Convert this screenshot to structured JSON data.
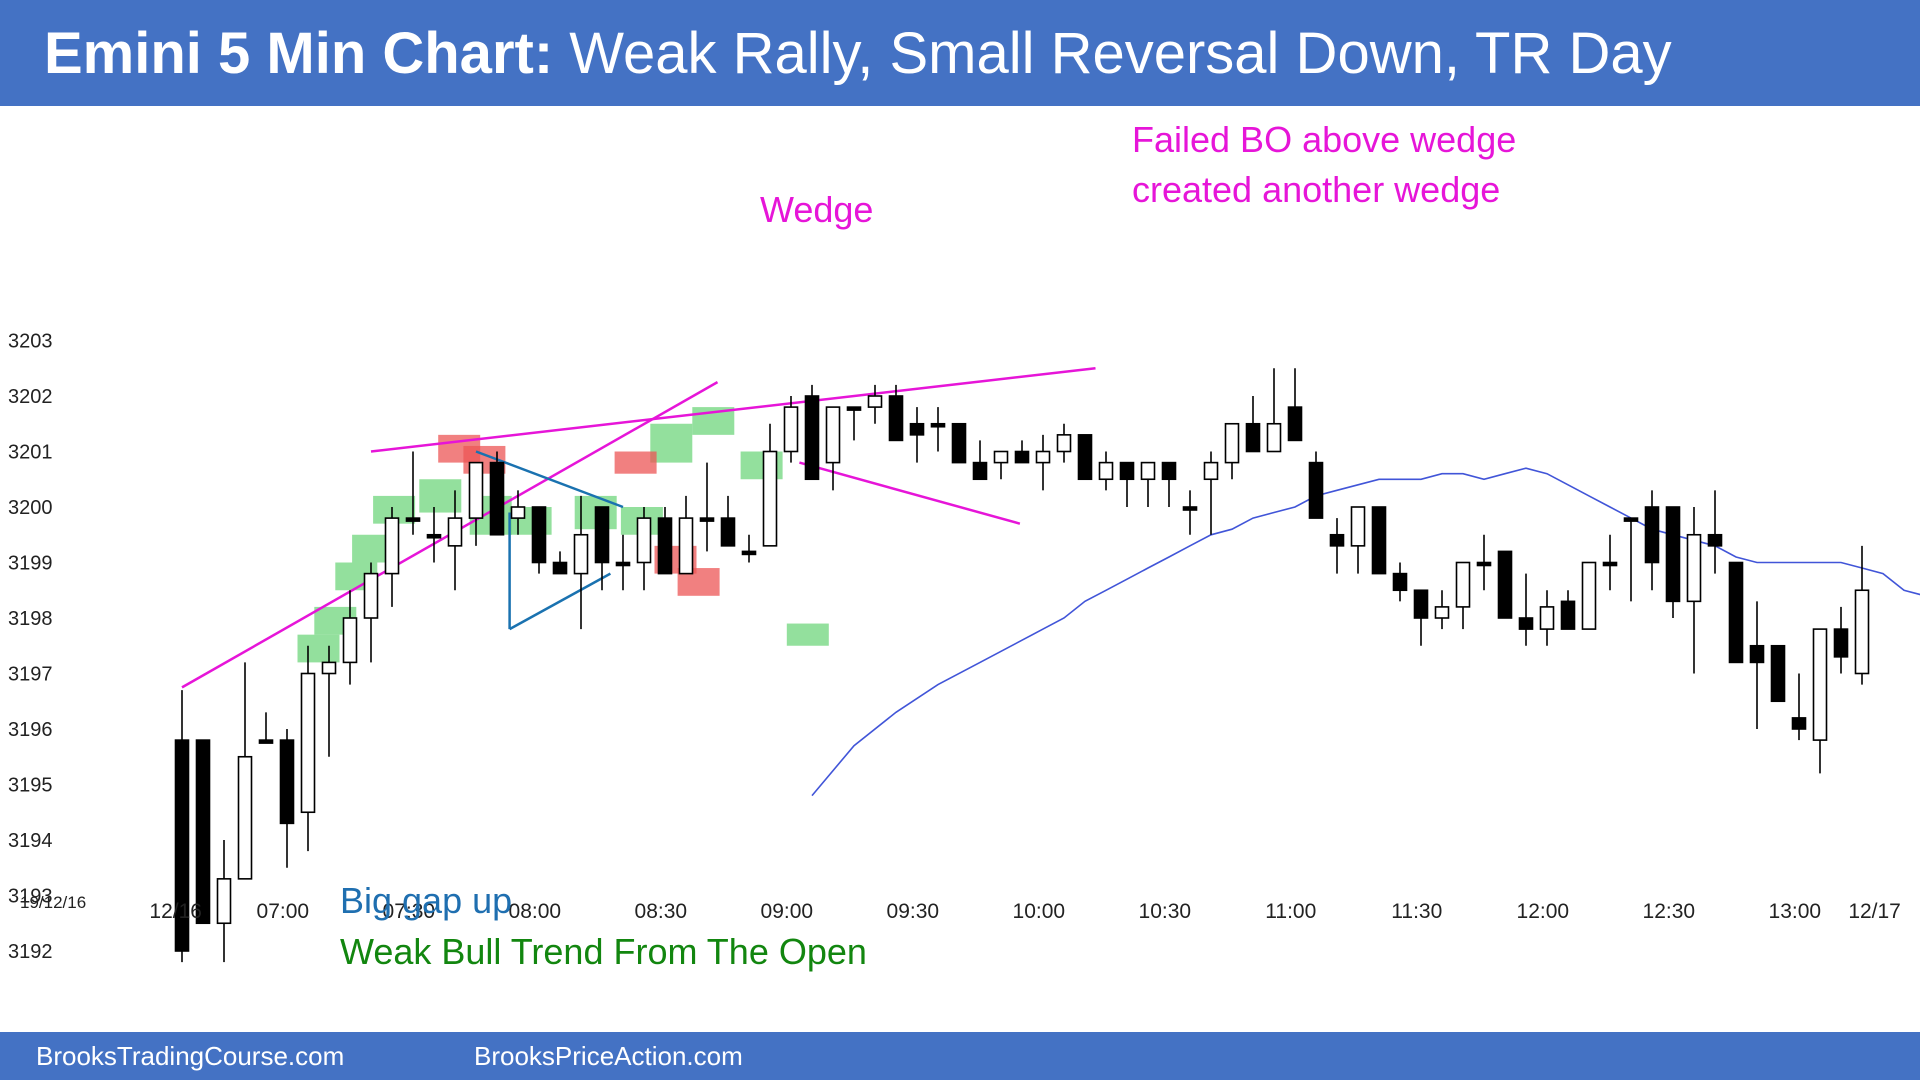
{
  "title": {
    "bold": "Emini 5 Min Chart:",
    "rest": "Weak Rally, Small Reversal Down, TR Day"
  },
  "footer": {
    "left": "BrooksTradingCourse.com",
    "right": "BrooksPriceAction.com"
  },
  "date_label": "19/12/16",
  "chart_data": {
    "type": "candlestick",
    "y_ticks": [
      3192,
      3193,
      3194,
      3195,
      3196,
      3197,
      3198,
      3199,
      3200,
      3201,
      3202,
      3203
    ],
    "ylim": [
      3191.6,
      3204.2
    ],
    "x_tick_labels": [
      {
        "bar": -0.3,
        "label": "12/16"
      },
      {
        "bar": 4.8,
        "label": "07:00"
      },
      {
        "bar": 10.8,
        "label": "07:30"
      },
      {
        "bar": 16.8,
        "label": "08:00"
      },
      {
        "bar": 22.8,
        "label": "08:30"
      },
      {
        "bar": 28.8,
        "label": "09:00"
      },
      {
        "bar": 34.8,
        "label": "09:30"
      },
      {
        "bar": 40.8,
        "label": "10:00"
      },
      {
        "bar": 46.8,
        "label": "10:30"
      },
      {
        "bar": 52.8,
        "label": "11:00"
      },
      {
        "bar": 58.8,
        "label": "11:30"
      },
      {
        "bar": 64.8,
        "label": "12:00"
      },
      {
        "bar": 70.8,
        "label": "12:30"
      },
      {
        "bar": 76.8,
        "label": "13:00"
      },
      {
        "bar": 80.6,
        "label": "12/17"
      }
    ],
    "candles": [
      [
        3195.8,
        3196.7,
        3191.8,
        3192.0
      ],
      [
        3195.8,
        3195.8,
        3192.5,
        3192.5
      ],
      [
        3192.5,
        3194.0,
        3191.8,
        3193.3
      ],
      [
        3193.3,
        3197.2,
        3193.3,
        3195.5
      ],
      [
        3195.8,
        3196.3,
        3195.8,
        3195.8
      ],
      [
        3195.8,
        3196.0,
        3193.5,
        3194.3
      ],
      [
        3194.5,
        3197.5,
        3193.8,
        3197.0
      ],
      [
        3197.0,
        3197.5,
        3195.5,
        3197.2
      ],
      [
        3197.2,
        3198.5,
        3196.8,
        3198.0
      ],
      [
        3198.0,
        3199.0,
        3197.2,
        3198.8
      ],
      [
        3198.8,
        3200.0,
        3198.2,
        3199.8
      ],
      [
        3199.8,
        3201.0,
        3199.5,
        3199.8
      ],
      [
        3199.5,
        3200.0,
        3199.0,
        3199.5
      ],
      [
        3199.3,
        3200.3,
        3198.5,
        3199.8
      ],
      [
        3199.8,
        3200.8,
        3199.3,
        3200.8
      ],
      [
        3200.8,
        3201.0,
        3199.5,
        3199.5
      ],
      [
        3199.8,
        3200.3,
        3199.5,
        3200.0
      ],
      [
        3200.0,
        3200.0,
        3198.8,
        3199.0
      ],
      [
        3199.0,
        3199.2,
        3198.8,
        3198.8
      ],
      [
        3198.8,
        3200.2,
        3197.8,
        3199.5
      ],
      [
        3200.0,
        3200.0,
        3198.5,
        3199.0
      ],
      [
        3199.0,
        3199.5,
        3198.5,
        3199.0
      ],
      [
        3199.0,
        3200.0,
        3198.5,
        3199.8
      ],
      [
        3199.8,
        3200.0,
        3198.8,
        3198.8
      ],
      [
        3198.8,
        3200.2,
        3198.8,
        3199.8
      ],
      [
        3199.8,
        3200.8,
        3199.2,
        3199.8
      ],
      [
        3199.8,
        3200.2,
        3199.3,
        3199.3
      ],
      [
        3199.2,
        3199.5,
        3199.0,
        3199.2
      ],
      [
        3199.3,
        3201.5,
        3199.3,
        3201.0
      ],
      [
        3201.0,
        3202.0,
        3200.8,
        3201.8
      ],
      [
        3202.0,
        3202.2,
        3200.5,
        3200.5
      ],
      [
        3200.8,
        3201.8,
        3200.3,
        3201.8
      ],
      [
        3201.8,
        3201.8,
        3201.2,
        3201.8
      ],
      [
        3201.8,
        3202.2,
        3201.5,
        3202.0
      ],
      [
        3202.0,
        3202.2,
        3201.2,
        3201.2
      ],
      [
        3201.5,
        3201.8,
        3200.8,
        3201.3
      ],
      [
        3201.5,
        3201.8,
        3201.0,
        3201.5
      ],
      [
        3201.5,
        3201.5,
        3200.8,
        3200.8
      ],
      [
        3200.8,
        3201.2,
        3200.5,
        3200.5
      ],
      [
        3200.8,
        3201.0,
        3200.5,
        3201.0
      ],
      [
        3201.0,
        3201.2,
        3200.8,
        3200.8
      ],
      [
        3200.8,
        3201.3,
        3200.3,
        3201.0
      ],
      [
        3201.0,
        3201.5,
        3200.8,
        3201.3
      ],
      [
        3201.3,
        3201.3,
        3200.5,
        3200.5
      ],
      [
        3200.5,
        3201.0,
        3200.3,
        3200.8
      ],
      [
        3200.8,
        3200.8,
        3200.0,
        3200.5
      ],
      [
        3200.5,
        3200.8,
        3200.0,
        3200.8
      ],
      [
        3200.8,
        3200.8,
        3200.0,
        3200.5
      ],
      [
        3200.0,
        3200.3,
        3199.5,
        3200.0
      ],
      [
        3200.5,
        3201.0,
        3199.5,
        3200.8
      ],
      [
        3200.8,
        3201.5,
        3200.5,
        3201.5
      ],
      [
        3201.5,
        3202.0,
        3201.0,
        3201.0
      ],
      [
        3201.0,
        3202.5,
        3201.0,
        3201.5
      ],
      [
        3201.8,
        3202.5,
        3201.2,
        3201.2
      ],
      [
        3200.8,
        3201.0,
        3199.8,
        3199.8
      ],
      [
        3199.5,
        3199.8,
        3198.8,
        3199.3
      ],
      [
        3199.3,
        3200.0,
        3198.8,
        3200.0
      ],
      [
        3200.0,
        3200.0,
        3198.8,
        3198.8
      ],
      [
        3198.8,
        3199.0,
        3198.3,
        3198.5
      ],
      [
        3198.5,
        3198.5,
        3197.5,
        3198.0
      ],
      [
        3198.0,
        3198.5,
        3197.8,
        3198.2
      ],
      [
        3198.2,
        3199.0,
        3197.8,
        3199.0
      ],
      [
        3199.0,
        3199.5,
        3198.5,
        3199.0
      ],
      [
        3199.2,
        3199.2,
        3198.0,
        3198.0
      ],
      [
        3198.0,
        3198.8,
        3197.5,
        3197.8
      ],
      [
        3197.8,
        3198.5,
        3197.5,
        3198.2
      ],
      [
        3198.3,
        3198.5,
        3197.8,
        3197.8
      ],
      [
        3197.8,
        3199.0,
        3197.8,
        3199.0
      ],
      [
        3199.0,
        3199.5,
        3198.5,
        3199.0
      ],
      [
        3199.8,
        3199.8,
        3198.3,
        3199.8
      ],
      [
        3200.0,
        3200.3,
        3198.5,
        3199.0
      ],
      [
        3200.0,
        3200.0,
        3198.0,
        3198.3
      ],
      [
        3198.3,
        3200.0,
        3197.0,
        3199.5
      ],
      [
        3199.5,
        3200.3,
        3198.8,
        3199.3
      ],
      [
        3199.0,
        3199.0,
        3197.2,
        3197.2
      ],
      [
        3197.5,
        3198.3,
        3196.0,
        3197.2
      ],
      [
        3197.5,
        3197.5,
        3196.5,
        3196.5
      ],
      [
        3196.2,
        3197.0,
        3195.8,
        3196.0
      ],
      [
        3195.8,
        3197.8,
        3195.2,
        3197.8
      ],
      [
        3197.8,
        3198.2,
        3197.0,
        3197.3
      ],
      [
        3197.0,
        3199.3,
        3196.8,
        3198.5
      ]
    ],
    "ema": [
      [
        30.0,
        3194.8
      ],
      [
        32.0,
        3195.7
      ],
      [
        34.0,
        3196.3
      ],
      [
        36.0,
        3196.8
      ],
      [
        38.0,
        3197.2
      ],
      [
        40.0,
        3197.6
      ],
      [
        41.0,
        3197.8
      ],
      [
        42.0,
        3198.0
      ],
      [
        43.0,
        3198.3
      ],
      [
        44.0,
        3198.5
      ],
      [
        45.0,
        3198.7
      ],
      [
        46.0,
        3198.9
      ],
      [
        47.0,
        3199.1
      ],
      [
        48.0,
        3199.3
      ],
      [
        49.0,
        3199.5
      ],
      [
        50.0,
        3199.6
      ],
      [
        51.0,
        3199.8
      ],
      [
        52.0,
        3199.9
      ],
      [
        53.0,
        3200.0
      ],
      [
        54.0,
        3200.2
      ],
      [
        55.0,
        3200.3
      ],
      [
        56.0,
        3200.4
      ],
      [
        57.0,
        3200.5
      ],
      [
        58.0,
        3200.5
      ],
      [
        59.0,
        3200.5
      ],
      [
        60.0,
        3200.6
      ],
      [
        61.0,
        3200.6
      ],
      [
        62.0,
        3200.5
      ],
      [
        63.0,
        3200.6
      ],
      [
        64.0,
        3200.7
      ],
      [
        65.0,
        3200.6
      ],
      [
        66.0,
        3200.4
      ],
      [
        67.0,
        3200.2
      ],
      [
        68.0,
        3200.0
      ],
      [
        69.0,
        3199.8
      ],
      [
        70.0,
        3199.6
      ],
      [
        71.0,
        3199.5
      ],
      [
        72.0,
        3199.4
      ],
      [
        73.0,
        3199.3
      ],
      [
        74.0,
        3199.1
      ],
      [
        75.0,
        3199.0
      ],
      [
        76.0,
        3199.0
      ],
      [
        77.0,
        3199.0
      ],
      [
        78.0,
        3199.0
      ],
      [
        79.0,
        3199.0
      ],
      [
        80.0,
        3198.9
      ],
      [
        81.0,
        3198.8
      ],
      [
        82.0,
        3198.5
      ],
      [
        83.0,
        3198.4
      ],
      [
        84.0,
        3198.2
      ],
      [
        85.0,
        3198.2
      ]
    ],
    "bull_highlights": [
      [
        5.5,
        7.5,
        3197.2,
        3197.7
      ],
      [
        6.3,
        8.3,
        3197.7,
        3198.2
      ],
      [
        7.3,
        9.3,
        3198.5,
        3199.0
      ],
      [
        8.1,
        10.1,
        3199.0,
        3199.5
      ],
      [
        9.1,
        11.1,
        3199.7,
        3200.2
      ],
      [
        11.3,
        13.3,
        3199.9,
        3200.5
      ],
      [
        13.7,
        15.7,
        3199.5,
        3200.2
      ],
      [
        15.6,
        17.6,
        3199.5,
        3200.0
      ],
      [
        18.7,
        20.7,
        3199.6,
        3200.2
      ],
      [
        20.9,
        22.9,
        3199.5,
        3200.0
      ],
      [
        22.3,
        24.3,
        3200.8,
        3201.5
      ],
      [
        24.3,
        26.3,
        3201.3,
        3201.8
      ],
      [
        26.6,
        28.6,
        3200.5,
        3201.0
      ],
      [
        28.8,
        30.8,
        3197.5,
        3197.9
      ]
    ],
    "bear_highlights": [
      [
        12.2,
        14.2,
        3200.8,
        3201.3
      ],
      [
        13.4,
        15.4,
        3200.6,
        3201.1
      ],
      [
        20.6,
        22.6,
        3200.6,
        3201.0
      ],
      [
        22.5,
        24.5,
        3198.8,
        3199.3
      ],
      [
        23.6,
        25.6,
        3198.4,
        3198.9
      ]
    ],
    "annotations": {
      "wedge": "Wedge",
      "failed_bo_line1": "Failed BO above wedge",
      "failed_bo_line2": "created another wedge",
      "gap_up": "Big gap up",
      "weak_bull": "Weak Bull Trend From The Open"
    },
    "colors": {
      "bull": "#ffffff",
      "bear": "#000000",
      "ema": "#4155d8",
      "wedge_lines": "#e615d8",
      "triangle": "#1a72b0",
      "bull_box": "#6fd67c",
      "bear_box": "#ec5656",
      "blue_text": "#1f6fb0",
      "green_text": "#12860f",
      "accent": "#4472c4"
    }
  }
}
